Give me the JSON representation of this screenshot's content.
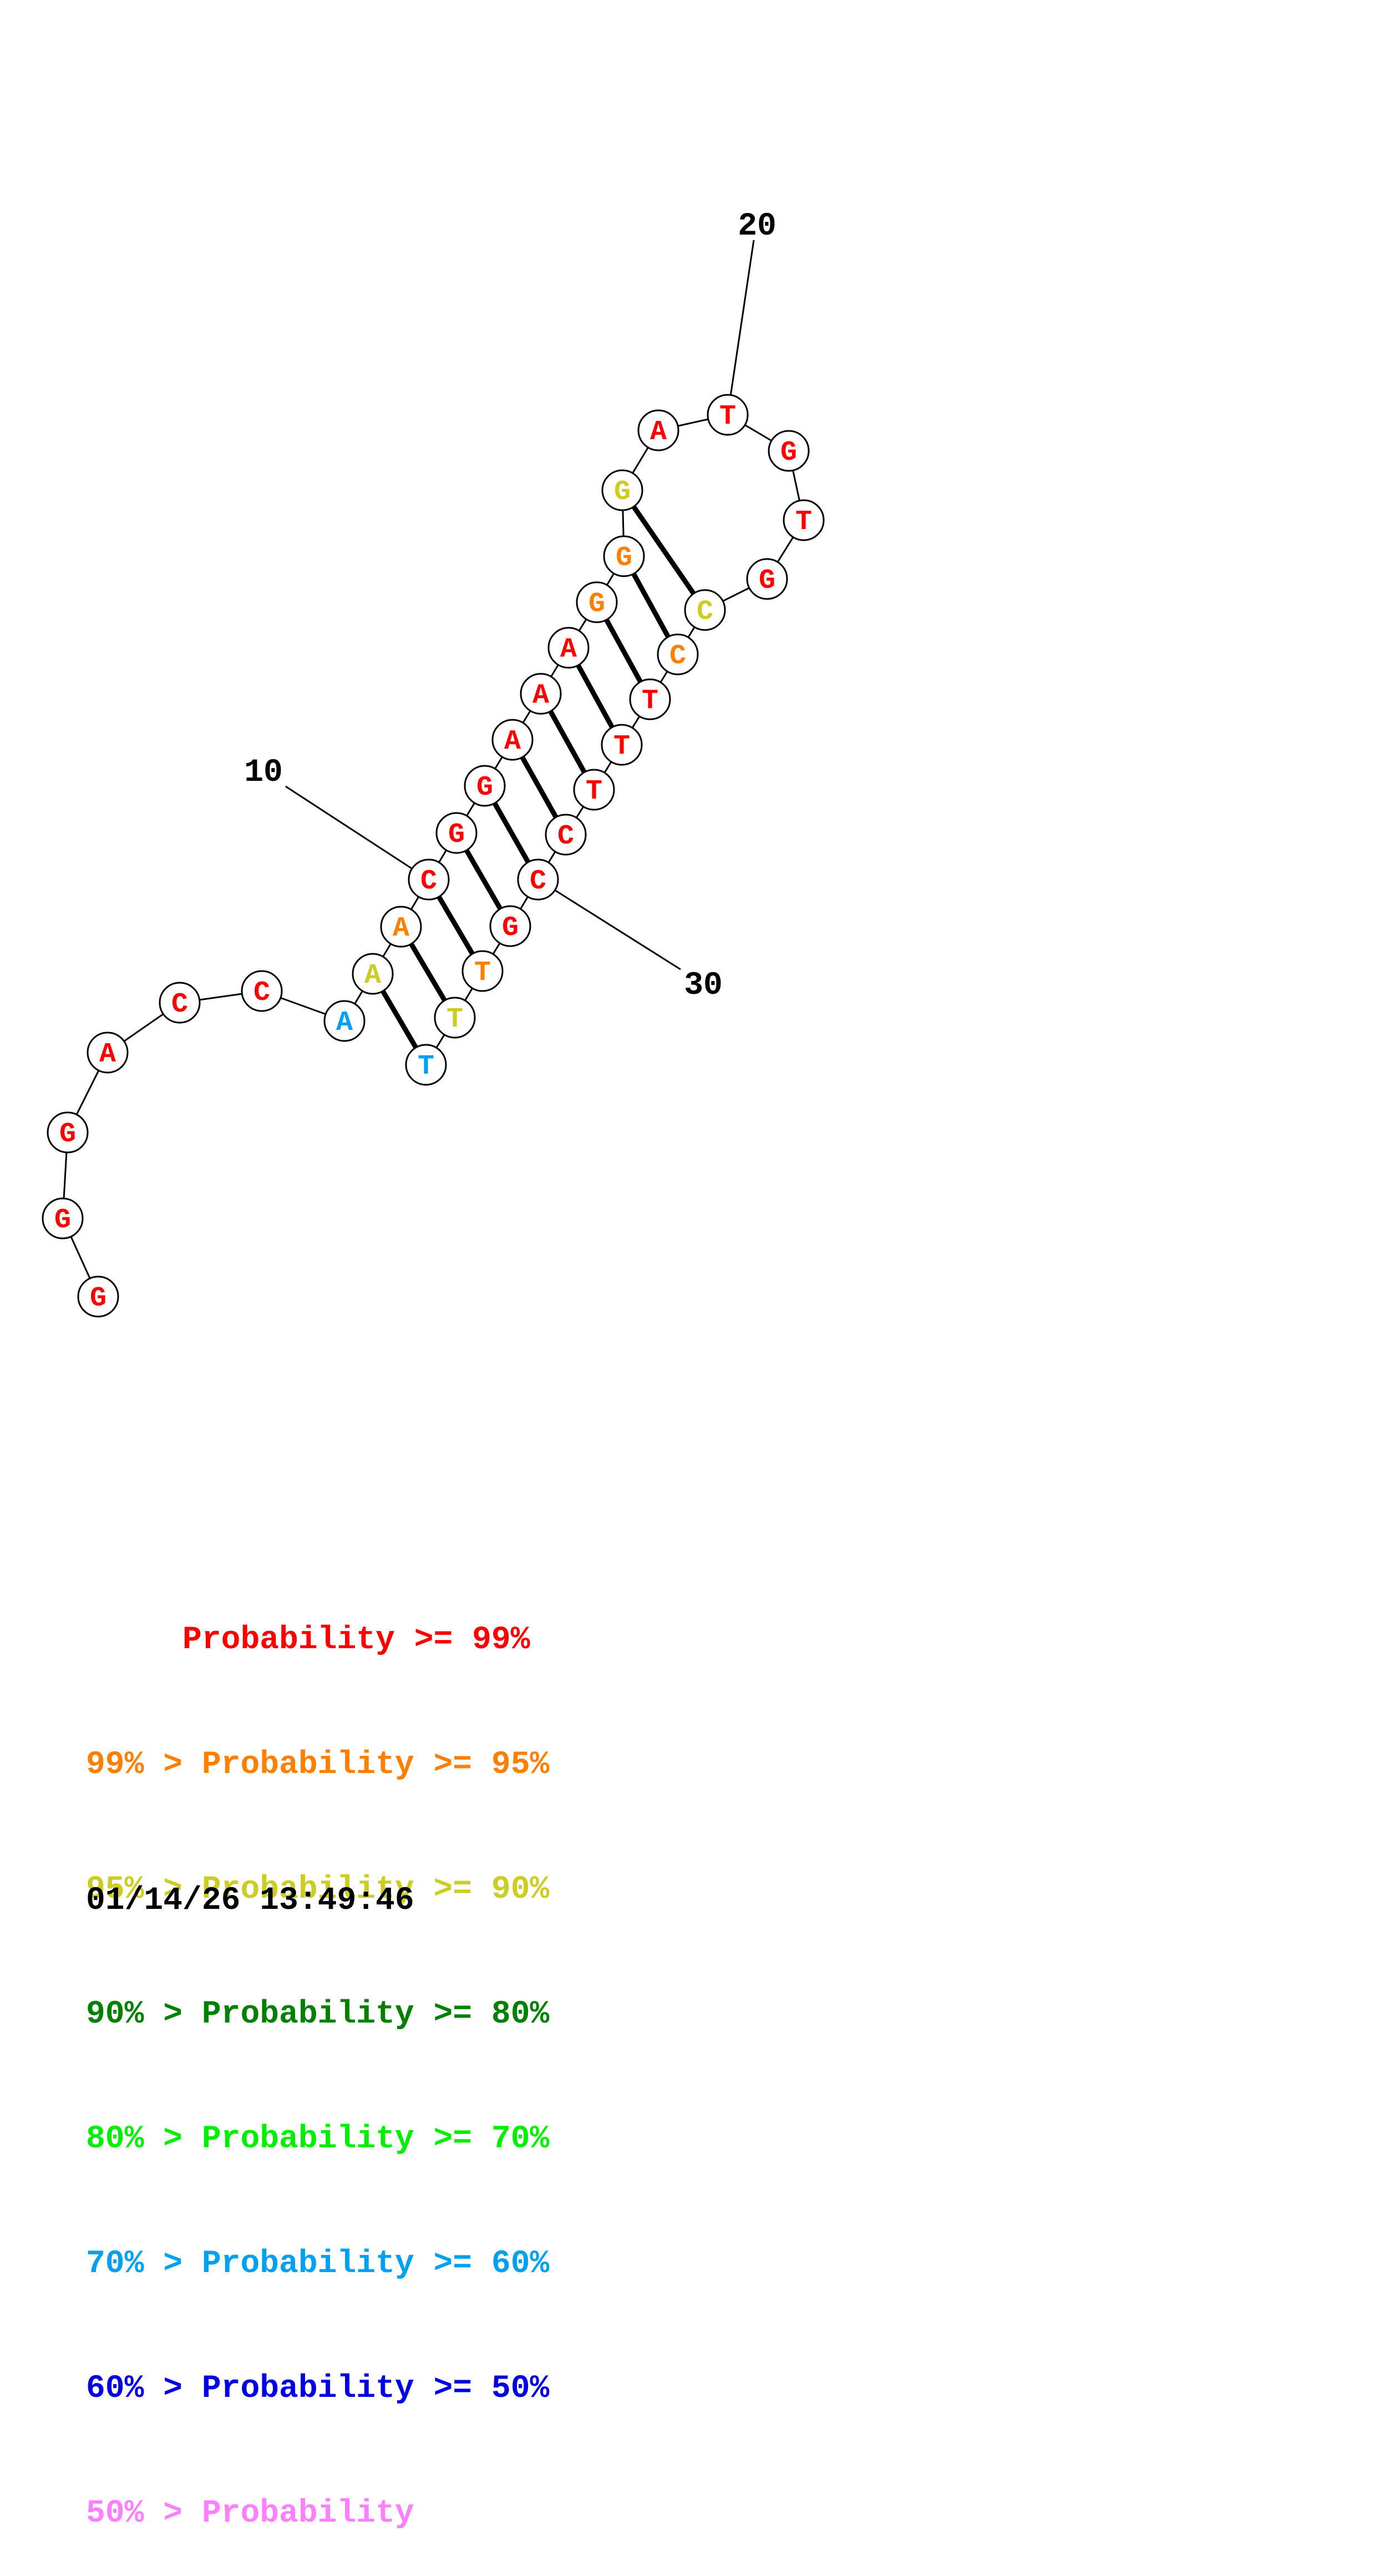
{
  "structure": {
    "sequence": [
      "G",
      "G",
      "G",
      "A",
      "C",
      "C",
      "A",
      "A",
      "A",
      "C",
      "G",
      "G",
      "A",
      "A",
      "A",
      "G",
      "G",
      "G",
      "A",
      "T",
      "G",
      "T",
      "G",
      "C",
      "C",
      "T",
      "T",
      "T",
      "C",
      "C",
      "G",
      "T",
      "T",
      "T"
    ],
    "pairs": [
      [
        8,
        34
      ],
      [
        9,
        33
      ],
      [
        10,
        32
      ],
      [
        11,
        31
      ],
      [
        12,
        30
      ],
      [
        13,
        29
      ],
      [
        14,
        28
      ],
      [
        15,
        27
      ],
      [
        16,
        26
      ],
      [
        17,
        25
      ],
      [
        18,
        24
      ]
    ],
    "colors": [
      "red",
      "red",
      "red",
      "red",
      "red",
      "red",
      "sky",
      "yellow",
      "orange",
      "red",
      "red",
      "red",
      "red",
      "red",
      "red",
      "orange",
      "orange",
      "yellow",
      "red",
      "red",
      "red",
      "red",
      "red",
      "yellow",
      "orange",
      "red",
      "red",
      "red",
      "red",
      "red",
      "red",
      "orange",
      "yellow",
      "sky"
    ],
    "position_labels": [
      {
        "index": 10,
        "text": "10"
      },
      {
        "index": 20,
        "text": "20"
      },
      {
        "index": 30,
        "text": "30"
      }
    ]
  },
  "palette": {
    "red": "#ff0000",
    "orange": "#ff8000",
    "yellow": "#cccc22",
    "dkgreen": "#008000",
    "green": "#00ee00",
    "sky": "#00a0f0",
    "blue": "#0000e0",
    "pink": "#ff80ff"
  },
  "legend": [
    {
      "text": "     Probability >= 99%",
      "color": "#ff0000"
    },
    {
      "text": "99% > Probability >= 95%",
      "color": "#ff8000"
    },
    {
      "text": "95% > Probability >= 90%",
      "color": "#cccc22"
    },
    {
      "text": "90% > Probability >= 80%",
      "color": "#008000"
    },
    {
      "text": "80% > Probability >= 70%",
      "color": "#00ee00"
    },
    {
      "text": "70% > Probability >= 60%",
      "color": "#00a0f0"
    },
    {
      "text": "60% > Probability >= 50%",
      "color": "#0000e0"
    },
    {
      "text": "50% > Probability",
      "color": "#ff80ff"
    }
  ],
  "timestamp": "01/14/26 13:49:46"
}
